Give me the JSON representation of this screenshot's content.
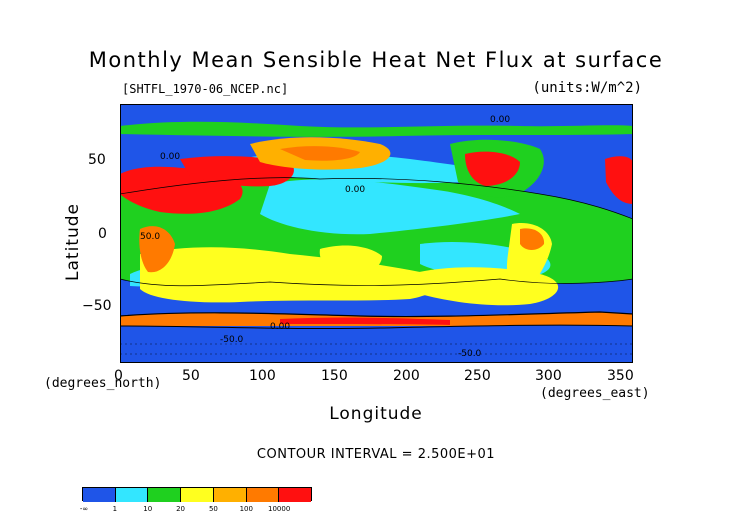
{
  "title": "Monthly Mean Sensible Heat Net Flux at surface",
  "file_label": "[SHTFL_1970-06_NCEP.nc]",
  "units_label": "(units:W/m^2)",
  "y_axis": {
    "label": "Latitude",
    "ticks": [
      "50",
      "0",
      "−50"
    ],
    "unit": "(degrees_north)"
  },
  "x_axis": {
    "label": "Longitude",
    "ticks": [
      "0",
      "50",
      "100",
      "150",
      "200",
      "250",
      "300",
      "350"
    ],
    "unit": "(degrees_east)"
  },
  "contour_interval": "CONTOUR INTERVAL = 2.500E+01",
  "map_labels": [
    "0.00",
    "0.00",
    "0.00",
    "0.00",
    "50.0",
    "-50.0",
    "-50.0"
  ],
  "colorbar": {
    "colors": [
      "#1f55e8",
      "#33e6ff",
      "#1fd01f",
      "#ffff1f",
      "#ffb000",
      "#ff7a00",
      "#ff1010"
    ],
    "labels": [
      "-∞",
      "1",
      "10",
      "20",
      "50",
      "100",
      "10000"
    ]
  },
  "chart_data": {
    "type": "heatmap",
    "title": "Monthly Mean Sensible Heat Net Flux at surface",
    "xlabel": "Longitude",
    "ylabel": "Latitude",
    "xlim": [
      0,
      360
    ],
    "ylim": [
      -90,
      90
    ],
    "x_ticks": [
      0,
      50,
      100,
      150,
      200,
      250,
      300,
      350
    ],
    "y_ticks": [
      50,
      0,
      -50
    ],
    "color_levels": [
      "-∞",
      "1",
      "10",
      "20",
      "50",
      "100",
      "10000"
    ],
    "contour_interval": 25
  }
}
